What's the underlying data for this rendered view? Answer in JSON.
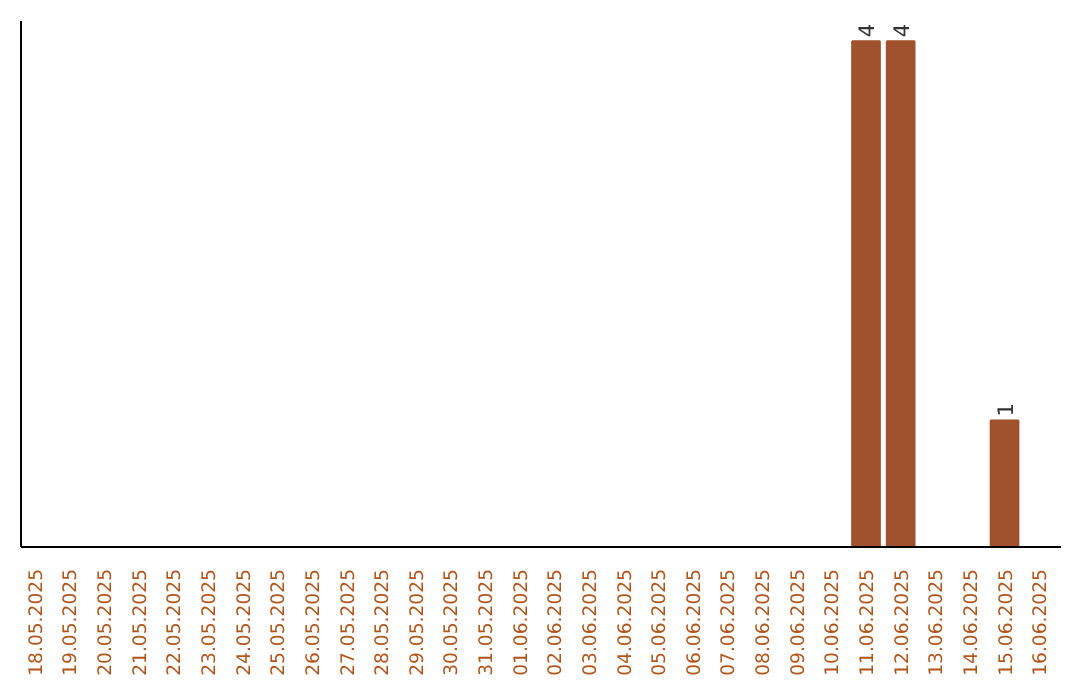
{
  "chart_data": {
    "type": "bar",
    "categories": [
      "18.05.2025",
      "19.05.2025",
      "20.05.2025",
      "21.05.2025",
      "22.05.2025",
      "23.05.2025",
      "24.05.2025",
      "25.05.2025",
      "26.05.2025",
      "27.05.2025",
      "28.05.2025",
      "29.05.2025",
      "30.05.2025",
      "31.05.2025",
      "01.06.2025",
      "02.06.2025",
      "03.06.2025",
      "04.06.2025",
      "05.06.2025",
      "06.06.2025",
      "07.06.2025",
      "08.06.2025",
      "09.06.2025",
      "10.06.2025",
      "11.06.2025",
      "12.06.2025",
      "13.06.2025",
      "14.06.2025",
      "15.06.2025",
      "16.06.2025"
    ],
    "values": [
      null,
      null,
      null,
      null,
      null,
      null,
      null,
      null,
      null,
      null,
      null,
      null,
      null,
      null,
      null,
      null,
      null,
      null,
      null,
      null,
      null,
      null,
      null,
      null,
      4,
      4,
      null,
      null,
      1,
      null
    ],
    "data_labels": true,
    "color": "#a0522d",
    "ylim": [
      0,
      4.16
    ],
    "tick_labels": "x",
    "grid": false
  }
}
